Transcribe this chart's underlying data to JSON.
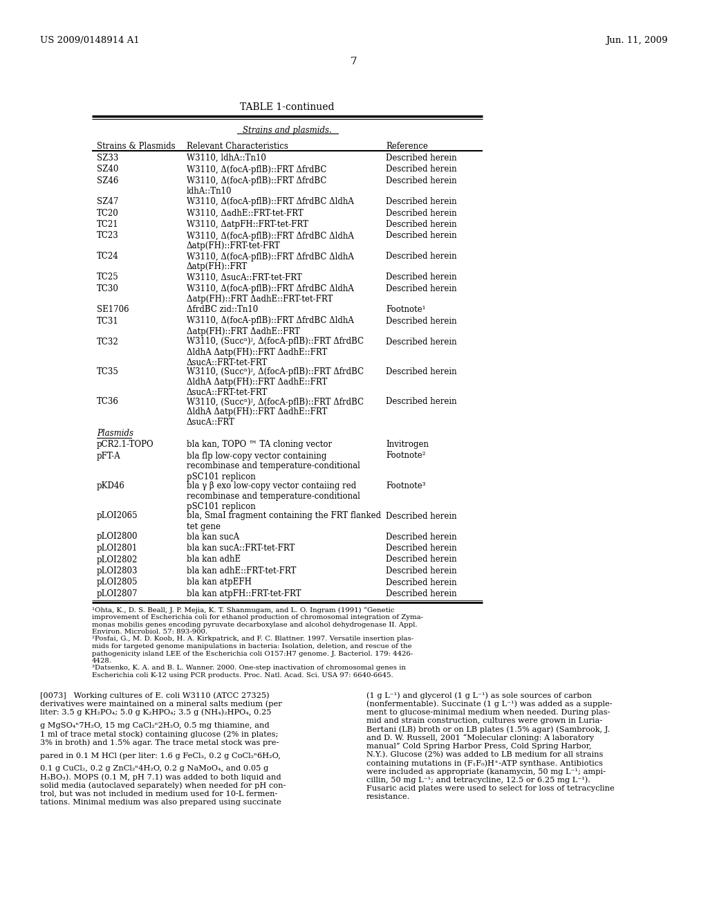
{
  "header_left": "US 2009/0148914 A1",
  "header_right": "Jun. 11, 2009",
  "page_number": "7",
  "table_title": "TABLE 1-continued",
  "section_header": "Strains and plasmids.",
  "col1_header": "Strains & Plasmids",
  "col2_header": "Relevant Characteristics",
  "col3_header": "Reference",
  "rows": [
    [
      "SZ33",
      "W3110, ldhA::Tn10",
      "Described herein"
    ],
    [
      "SZ40",
      "W3110, Δ(focA-pflB)::FRT ΔfrdBC",
      "Described herein"
    ],
    [
      "SZ46",
      "W3110, Δ(focA-pflB)::FRT ΔfrdBC\nldhA::Tn10",
      "Described herein"
    ],
    [
      "SZ47",
      "W3110, Δ(focA-pflB)::FRT ΔfrdBC ΔldhA",
      "Described herein"
    ],
    [
      "TC20",
      "W3110, ΔadhE::FRT-tet-FRT",
      "Described herein"
    ],
    [
      "TC21",
      "W3110, ΔatpFH::FRT-tet-FRT",
      "Described herein"
    ],
    [
      "TC23",
      "W3110, Δ(focA-pflB)::FRT ΔfrdBC ΔldhA\nΔatp(FH)::FRT-tet-FRT",
      "Described herein"
    ],
    [
      "TC24",
      "W3110, Δ(focA-pflB)::FRT ΔfrdBC ΔldhA\nΔatp(FH)::FRT",
      "Described herein"
    ],
    [
      "TC25",
      "W3110, ΔsucA::FRT-tet-FRT",
      "Described herein"
    ],
    [
      "TC30",
      "W3110, Δ(focA-pflB)::FRT ΔfrdBC ΔldhA\nΔatp(FH)::FRT ΔadhE::FRT-tet-FRT",
      "Described herein"
    ],
    [
      "SE1706",
      "ΔfrdBC zid::Tn10",
      "Footnote¹"
    ],
    [
      "TC31",
      "W3110, Δ(focA-pflB)::FRT ΔfrdBC ΔldhA\nΔatp(FH)::FRT ΔadhE::FRT",
      "Described herein"
    ],
    [
      "TC32",
      "W3110, (Succⁿ)ʲ, Δ(focA-pflB)::FRT ΔfrdBC\nΔldhA Δatp(FH)::FRT ΔadhE::FRT\nΔsucA::FRT-tet-FRT",
      "Described herein"
    ],
    [
      "TC35",
      "W3110, (Succⁿ)ʲ, Δ(focA-pflB)::FRT ΔfrdBC\nΔldhA Δatp(FH)::FRT ΔadhE::FRT\nΔsucA::FRT-tet-FRT",
      "Described herein"
    ],
    [
      "TC36",
      "W3110, (Succⁿ)ʲ, Δ(focA-pflB)::FRT ΔfrdBC\nΔldhA Δatp(FH)::FRT ΔadhE::FRT\nΔsucA::FRT",
      "Described herein"
    ]
  ],
  "plasmids_header": "Plasmids",
  "plasmid_rows": [
    [
      "pCR2.1-TOPO",
      "bla kan, TOPO ™ TA cloning vector",
      "Invitrogen"
    ],
    [
      "pFT-A",
      "bla flp low-copy vector containing\nrecombinase and temperature-conditional\npSC101 replicon",
      "Footnote²"
    ],
    [
      "pKD46",
      "bla γ β exo low-copy vector contaiing red\nrecombinase and temperature-conditional\npSC101 replicon",
      "Footnote³"
    ],
    [
      "pLOI2065",
      "bla, SmaI fragment containing the FRT flanked\ntet gene",
      "Described herein"
    ],
    [
      "pLOI2800",
      "bla kan sucA",
      "Described herein"
    ],
    [
      "pLOI2801",
      "bla kan sucA::FRT-tet-FRT",
      "Described herein"
    ],
    [
      "pLOI2802",
      "bla kan adhE",
      "Described herein"
    ],
    [
      "pLOI2803",
      "bla kan adhE::FRT-tet-FRT",
      "Described herein"
    ],
    [
      "pLOI2805",
      "bla kan atpEFH",
      "Described herein"
    ],
    [
      "pLOI2807",
      "bla kan atpFH::FRT-tet-FRT",
      "Described herein"
    ]
  ],
  "fn1_lines": [
    "¹Ohta, K., D. S. Beall, J. P. Mejia, K. T. Shanmugam, and L. O. Ingram (1991) “Genetic",
    "improvement of Escherichia coli for ethanol production of chromosomal integration of Zyma-",
    "monas mobilis genes encoding pyruvate decarboxylase and alcohol dehydrogenase II. Appl.",
    "Environ. Microbiol. 57: 893-900."
  ],
  "fn2_lines": [
    "²Posfai, G., M. D. Koob, H. A. Kirkpatrick, and F. C. Blattner. 1997. Versatile insertion plas-",
    "mids for targeted genome manipulations in bacteria: Isolation, deletion, and rescue of the",
    "pathogenicity island LEE of the Escherichia coli O157:H7 genome. J. Bacteriol. 179: 4426-",
    "4428."
  ],
  "fn3_lines": [
    "³Datsenko, K. A. and B. L. Wanner. 2000. One-step inactivation of chromosomal genes in",
    "Escherichia coli K-12 using PCR products. Proc. Natl. Acad. Sci. USA 97: 6640-6645."
  ],
  "left_body_lines": [
    "[0073]   Working cultures of E. coli W3110 (ATCC 27325)",
    "derivatives were maintained on a mineral salts medium (per",
    "liter: 3.5 g KH₂PO₄; 5.0 g K₂HPO₄; 3.5 g (NH₄)₂HPO₄, 0.25",
    "",
    "g MgSO₄ⁿ7H₂O, 15 mg CaCl₂ⁿ2H₂O, 0.5 mg thiamine, and",
    "1 ml of trace metal stock) containing glucose (2% in plates;",
    "3% in broth) and 1.5% agar. The trace metal stock was pre-",
    "",
    "pared in 0.1 M HCl (per liter: 1.6 g FeCl₃, 0.2 g CoCl₂ⁿ6H₂O,",
    "",
    "0.1 g CuCl₂, 0.2 g ZnCl₂ⁿ4H₂O, 0.2 g NaMoO₄, and 0.05 g",
    "H₃BO₃). MOPS (0.1 M, pH 7.1) was added to both liquid and",
    "solid media (autoclaved separately) when needed for pH con-",
    "trol, but was not included in medium used for 10-L fermen-",
    "tations. Minimal medium was also prepared using succinate"
  ],
  "right_body_lines": [
    "(1 g L⁻¹) and glycerol (1 g L⁻¹) as sole sources of carbon",
    "(nonfermentable). Succinate (1 g L⁻¹) was added as a supple-",
    "ment to glucose-minimal medium when needed. During plas-",
    "mid and strain construction, cultures were grown in Luria-",
    "Bertani (LB) broth or on LB plates (1.5% agar) (Sambrook, J.",
    "and D. W. Russell, 2001 “Molecular cloning: A laboratory",
    "manual” Cold Spring Harbor Press, Cold Spring Harbor,",
    "N.Y.). Glucose (2%) was added to LB medium for all strains",
    "containing mutations in (F₁F₀)H⁺-ATP synthase. Antibiotics",
    "were included as appropriate (kanamycin, 50 mg L⁻¹; ampi-",
    "cillin, 50 mg L⁻¹; and tetracycline, 12.5 or 6.25 mg L⁻¹).",
    "Fusaric acid plates were used to select for loss of tetracycline",
    "resistance."
  ]
}
